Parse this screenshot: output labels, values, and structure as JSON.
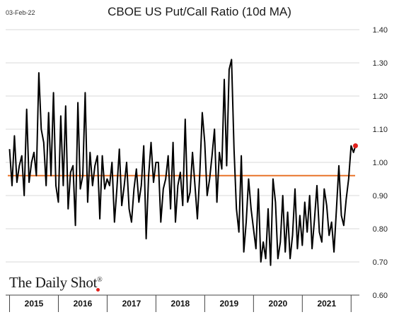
{
  "header": {
    "date_stamp": "03-Feb-22",
    "title": "CBOE US Put/Call Ratio (10d MA)"
  },
  "branding": {
    "name": "The Daily Shot",
    "registered_mark": "®"
  },
  "colors": {
    "series_line": "#000000",
    "reference_line": "#e8742a",
    "last_point": "#e0201b",
    "grid": "#d9d9d9",
    "axis": "#444444"
  },
  "chart_data": {
    "type": "line",
    "title": "CBOE US Put/Call Ratio (10d MA)",
    "xlabel": "",
    "ylabel": "",
    "ylim": [
      0.6,
      1.4
    ],
    "y_ticks": [
      "0.60",
      "0.70",
      "0.80",
      "0.90",
      "1.00",
      "1.10",
      "1.20",
      "1.30",
      "1.40"
    ],
    "x_categories": [
      "2015",
      "2016",
      "2017",
      "2018",
      "2019",
      "2020",
      "2021"
    ],
    "grid": "horizontal",
    "reference_line": {
      "y": 0.96,
      "color": "#e8742a"
    },
    "last_point": {
      "x": 2022.09,
      "y": 1.05
    },
    "series": [
      {
        "x": [
          2015.0,
          2015.05,
          2015.1,
          2015.15,
          2015.2,
          2015.25,
          2015.3,
          2015.35,
          2015.4,
          2015.45,
          2015.5,
          2015.55,
          2015.6,
          2015.65,
          2015.7,
          2015.75,
          2015.8,
          2015.85,
          2015.9,
          2015.95,
          2016.0,
          2016.05,
          2016.1,
          2016.15,
          2016.2,
          2016.25,
          2016.3,
          2016.35,
          2016.4,
          2016.45,
          2016.5,
          2016.55,
          2016.6,
          2016.65,
          2016.7,
          2016.75,
          2016.8,
          2016.85,
          2016.9,
          2016.95,
          2017.0,
          2017.05,
          2017.1,
          2017.15,
          2017.2,
          2017.25,
          2017.3,
          2017.35,
          2017.4,
          2017.45,
          2017.5,
          2017.55,
          2017.6,
          2017.65,
          2017.7,
          2017.75,
          2017.8,
          2017.85,
          2017.9,
          2017.95,
          2018.0,
          2018.05,
          2018.1,
          2018.15,
          2018.2,
          2018.25,
          2018.3,
          2018.35,
          2018.4,
          2018.45,
          2018.5,
          2018.55,
          2018.6,
          2018.65,
          2018.7,
          2018.75,
          2018.8,
          2018.85,
          2018.9,
          2018.95,
          2019.0,
          2019.05,
          2019.1,
          2019.15,
          2019.2,
          2019.25,
          2019.3,
          2019.35,
          2019.4,
          2019.45,
          2019.5,
          2019.55,
          2019.6,
          2019.65,
          2019.7,
          2019.75,
          2019.8,
          2019.85,
          2019.9,
          2019.95,
          2020.0,
          2020.05,
          2020.1,
          2020.15,
          2020.2,
          2020.25,
          2020.3,
          2020.35,
          2020.4,
          2020.45,
          2020.5,
          2020.55,
          2020.6,
          2020.65,
          2020.7,
          2020.75,
          2020.8,
          2020.85,
          2020.9,
          2020.95,
          2021.0,
          2021.05,
          2021.1,
          2021.15,
          2021.2,
          2021.25,
          2021.3,
          2021.35,
          2021.4,
          2021.45,
          2021.5,
          2021.55,
          2021.6,
          2021.65,
          2021.7,
          2021.75,
          2021.8,
          2021.85,
          2021.9,
          2021.95,
          2022.0,
          2022.05,
          2022.09
        ],
        "values": [
          1.04,
          0.93,
          1.08,
          0.94,
          0.99,
          1.02,
          0.9,
          1.16,
          0.94,
          1.0,
          1.03,
          0.96,
          1.27,
          1.1,
          1.06,
          0.93,
          1.15,
          0.96,
          1.21,
          0.93,
          0.88,
          1.14,
          0.93,
          1.17,
          0.86,
          0.97,
          0.99,
          0.81,
          1.18,
          0.92,
          0.96,
          1.21,
          0.88,
          1.03,
          0.93,
          0.99,
          1.02,
          0.83,
          1.02,
          0.92,
          0.95,
          0.93,
          1.0,
          0.82,
          0.92,
          1.04,
          0.87,
          0.93,
          1.0,
          0.86,
          0.82,
          0.92,
          0.98,
          0.88,
          0.93,
          1.05,
          0.77,
          0.96,
          1.06,
          0.94,
          1.0,
          1.0,
          0.82,
          0.92,
          0.95,
          1.02,
          0.86,
          1.06,
          0.82,
          0.93,
          0.97,
          0.87,
          1.13,
          0.88,
          0.91,
          1.03,
          0.93,
          0.83,
          0.97,
          1.15,
          1.06,
          0.9,
          0.95,
          1.02,
          1.1,
          0.88,
          1.03,
          0.98,
          1.25,
          0.99,
          1.28,
          1.31,
          1.04,
          0.86,
          0.79,
          1.02,
          0.73,
          0.82,
          0.95,
          0.86,
          0.8,
          0.74,
          0.92,
          0.7,
          0.76,
          0.71,
          0.86,
          0.69,
          0.95,
          0.88,
          0.71,
          0.76,
          0.9,
          0.73,
          0.85,
          0.71,
          0.78,
          0.92,
          0.74,
          0.84,
          0.75,
          0.88,
          0.79,
          0.9,
          0.74,
          0.83,
          0.93,
          0.79,
          0.76,
          0.92,
          0.87,
          0.78,
          0.82,
          0.73,
          0.86,
          0.99,
          0.84,
          0.81,
          0.89,
          0.95,
          1.05,
          1.03,
          1.05
        ]
      }
    ]
  }
}
